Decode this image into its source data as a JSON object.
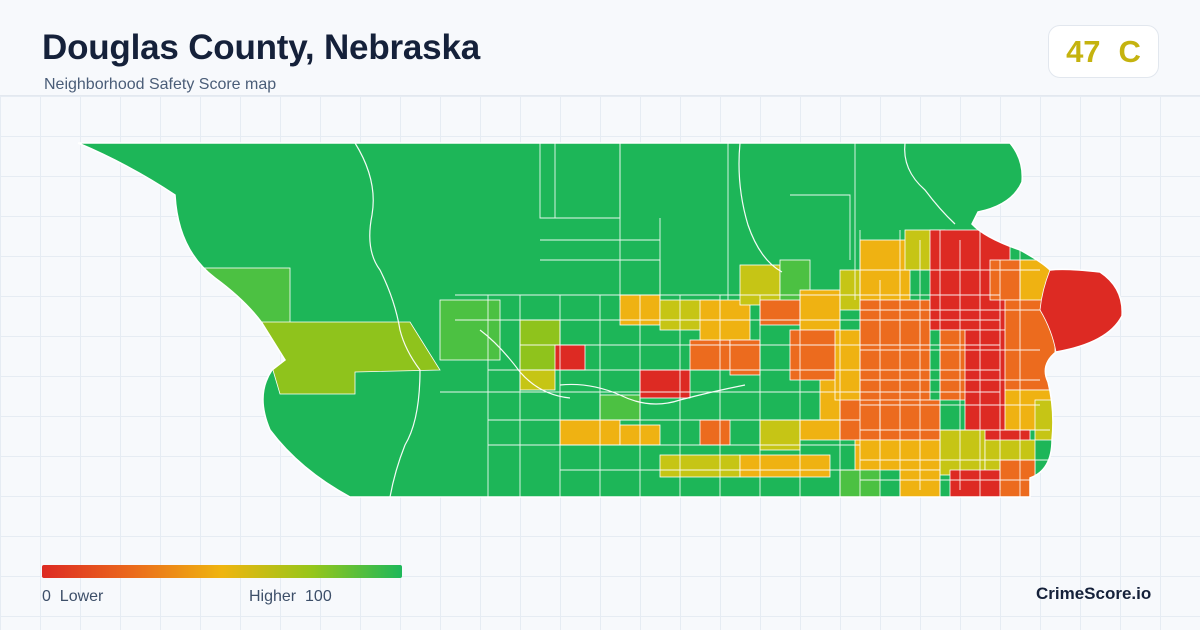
{
  "header": {
    "title": "Douglas County, Nebraska",
    "subtitle": "Neighborhood Safety Score map"
  },
  "score": {
    "value": "47",
    "grade": "C",
    "color": "#c5b30f"
  },
  "legend": {
    "min": "0",
    "low_label": "Lower",
    "high_label": "Higher",
    "max": "100",
    "colors": [
      "#dd2a23",
      "#eb6a1c",
      "#efb510",
      "#96c61a",
      "#1eb85a"
    ]
  },
  "brand": "CrimeScore.io",
  "palette": {
    "lowest": "#dd2a23",
    "low": "#ec6b1e",
    "mid": "#efb212",
    "upper": "#c6c515",
    "high": "#8fc31c",
    "higher": "#4cc142",
    "highest": "#1db658",
    "border": "#ffffff",
    "river": "#ffffff"
  }
}
